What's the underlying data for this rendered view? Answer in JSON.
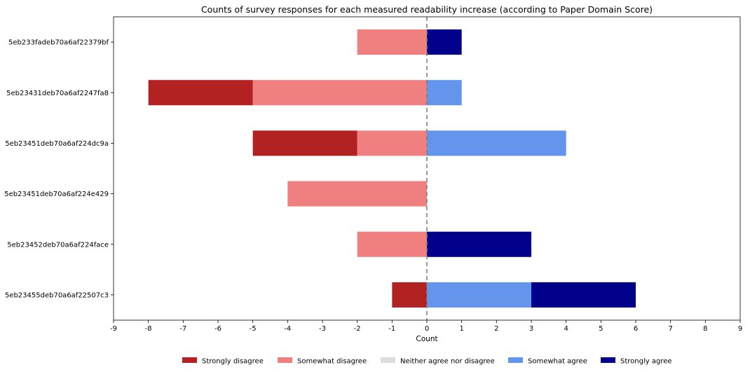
{
  "chart_data": {
    "type": "bar",
    "orientation": "horizontal",
    "stacked": "diverging",
    "title": "Counts of survey responses for each measured readability increase (according to Paper Domain Score)",
    "xlabel": "Count",
    "ylabel": "",
    "xlim": [
      -9,
      9
    ],
    "xticks": [
      "-9",
      "-8",
      "-7",
      "-6",
      "-5",
      "-4",
      "-3",
      "-2",
      "-1",
      "0",
      "1",
      "2",
      "3",
      "4",
      "5",
      "6",
      "7",
      "8",
      "9"
    ],
    "categories": [
      "5eb233fadeb70a6af22379bf",
      "5eb23431deb70a6af2247fa8",
      "5eb23451deb70a6af224dc9a",
      "5eb23451deb70a6af224e429",
      "5eb23452deb70a6af224face",
      "5eb23455deb70a6af22507c3"
    ],
    "series": [
      {
        "name": "Strongly disagree",
        "color": "#b22222",
        "values": [
          0,
          3,
          3,
          0,
          0,
          1
        ]
      },
      {
        "name": "Somewhat disagree",
        "color": "#f08080",
        "values": [
          2,
          5,
          2,
          4,
          2,
          0
        ]
      },
      {
        "name": "Neither agree nor disagree",
        "color": "#dcdcdc",
        "values": [
          0,
          0,
          0,
          0,
          0,
          0
        ]
      },
      {
        "name": "Somewhat agree",
        "color": "#6495ed",
        "values": [
          0,
          1,
          4,
          0,
          0,
          3
        ]
      },
      {
        "name": "Strongly agree",
        "color": "#00008b",
        "values": [
          1,
          0,
          0,
          0,
          3,
          3
        ]
      }
    ],
    "zero_line": "dashed",
    "grid": false,
    "legend_position": "bottom"
  }
}
